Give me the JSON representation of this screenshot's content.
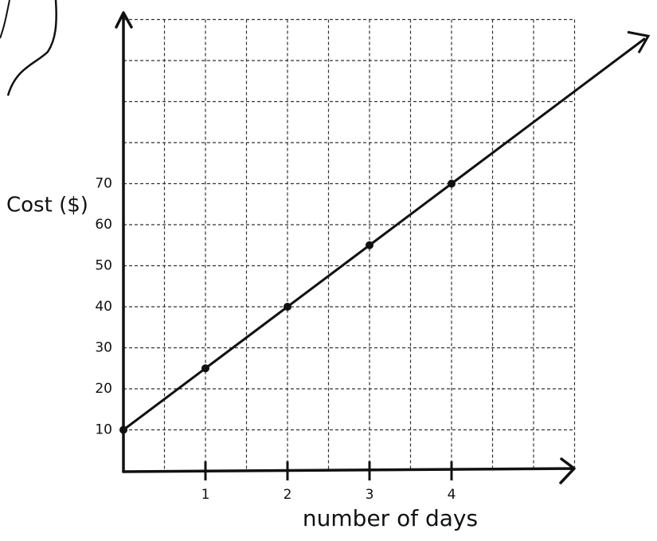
{
  "chart_data": {
    "type": "line",
    "x_label": "number of days",
    "y_label": "Cost ($)",
    "x": [
      0,
      1,
      2,
      3,
      4
    ],
    "values": [
      10,
      25,
      40,
      55,
      70
    ],
    "color": "#111111",
    "xlim": [
      0,
      5.5
    ],
    "ylim": [
      0,
      110
    ],
    "xticks": [
      1,
      2,
      3,
      4
    ],
    "yticks": [
      10,
      20,
      30,
      40,
      50,
      60,
      70
    ],
    "grid": true
  }
}
